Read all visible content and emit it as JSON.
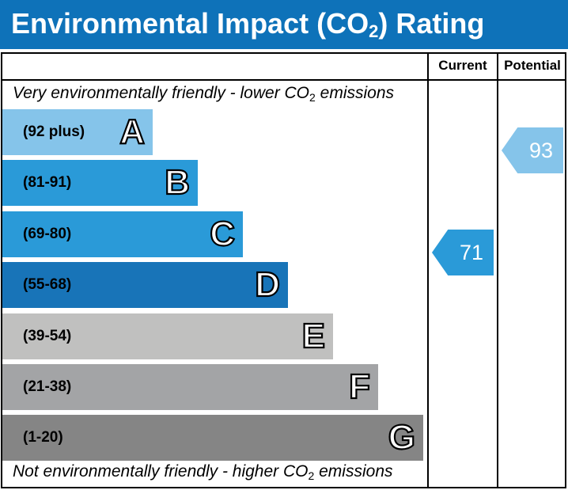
{
  "title": {
    "prefix": "Environmental Impact (CO",
    "subscript": "2",
    "suffix": ") Rating"
  },
  "columns": {
    "current": "Current",
    "potential": "Potential"
  },
  "top_note": {
    "prefix": "Very environmentally friendly - lower CO",
    "subscript": "2",
    "suffix": " emissions"
  },
  "bottom_note": {
    "prefix": "Not environmentally friendly - higher CO",
    "subscript": "2",
    "suffix": " emissions"
  },
  "chart_data": {
    "type": "bar",
    "categories": [
      "A",
      "B",
      "C",
      "D",
      "E",
      "F",
      "G"
    ],
    "bands": [
      {
        "letter": "A",
        "range": "(92 plus)",
        "color": "#85c4ea"
      },
      {
        "letter": "B",
        "range": "(81-91)",
        "color": "#2a9ad8"
      },
      {
        "letter": "C",
        "range": "(69-80)",
        "color": "#2a9ad8"
      },
      {
        "letter": "D",
        "range": "(55-68)",
        "color": "#1874b8"
      },
      {
        "letter": "E",
        "range": "(39-54)",
        "color": "#c0c0bf"
      },
      {
        "letter": "F",
        "range": "(21-38)",
        "color": "#a3a4a6"
      },
      {
        "letter": "G",
        "range": "(1-20)",
        "color": "#858585"
      }
    ],
    "current": {
      "value": "71",
      "band": "C",
      "color": "#2a9ad8"
    },
    "potential": {
      "value": "93",
      "band": "A",
      "color": "#85c4ea"
    }
  },
  "colors": {
    "header_bg": "#0e72b9"
  }
}
